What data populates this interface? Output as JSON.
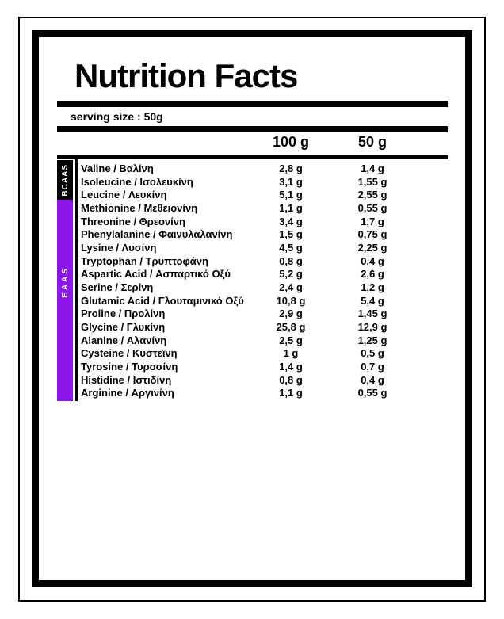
{
  "label": {
    "title": "Nutrition Facts",
    "serving_size": "serving size : 50g",
    "columns": {
      "per100": "100 g",
      "per50": "50 g"
    },
    "sections": [
      {
        "id": "bcaas",
        "label": "BCAAS",
        "color": "#000000"
      },
      {
        "id": "eaas",
        "label": "EAAS",
        "color": "#8C15EA"
      }
    ],
    "rows": [
      {
        "section": "bcaas",
        "name": "Valine / Βαλίνη",
        "per100": "2,8 g",
        "per50": "1,4 g"
      },
      {
        "section": "bcaas",
        "name": "Isoleucine / Ισολευκίνη",
        "per100": "3,1 g",
        "per50": "1,55 g"
      },
      {
        "section": "bcaas",
        "name": "Leucine / Λευκίνη",
        "per100": "5,1 g",
        "per50": "2,55 g"
      },
      {
        "section": "eaas",
        "name": "Methionine / Μεθειονίνη",
        "per100": "1,1 g",
        "per50": "0,55 g"
      },
      {
        "section": "eaas",
        "name": "Threonine / Θρεονίνη",
        "per100": "3,4 g",
        "per50": "1,7 g"
      },
      {
        "section": "eaas",
        "name": "Phenylalanine / Φαινυλαλανίνη",
        "per100": "1,5 g",
        "per50": "0,75 g"
      },
      {
        "section": "eaas",
        "name": "Lysine / Λυσίνη",
        "per100": "4,5 g",
        "per50": "2,25 g"
      },
      {
        "section": "eaas",
        "name": "Tryptophan / Τρυπτοφάνη",
        "per100": "0,8 g",
        "per50": "0,4 g"
      },
      {
        "section": "eaas",
        "name": "Aspartic Acid / Ασπαρτικό Οξύ",
        "per100": "5,2 g",
        "per50": "2,6 g"
      },
      {
        "section": "eaas",
        "name": "Serine / Σερίνη",
        "per100": "2,4 g",
        "per50": "1,2 g"
      },
      {
        "section": "eaas",
        "name": "Glutamic Acid / Γλουταμινικό Οξύ",
        "per100": "10,8 g",
        "per50": "5,4 g"
      },
      {
        "section": "eaas",
        "name": "Proline / Προλίνη",
        "per100": "2,9 g",
        "per50": "1,45 g"
      },
      {
        "section": "eaas",
        "name": "Glycine / Γλυκίνη",
        "per100": "25,8 g",
        "per50": "12,9 g"
      },
      {
        "section": "eaas",
        "name": "Alanine / Αλανίνη",
        "per100": "2,5 g",
        "per50": "1,25 g"
      },
      {
        "section": "eaas",
        "name": "Cysteine / Κυστεϊνη",
        "per100": "1 g",
        "per50": "0,5 g"
      },
      {
        "section": "eaas",
        "name": "Tyrosine / Τυροσίνη",
        "per100": "1,4 g",
        "per50": "0,7 g"
      },
      {
        "section": "eaas",
        "name": "Histidine / Ιστιδίνη",
        "per100": "0,8 g",
        "per50": "0,4 g"
      },
      {
        "section": "eaas",
        "name": "Arginine / Αργινίνη",
        "per100": "1,1 g",
        "per50": "0,55 g"
      }
    ]
  },
  "colors": {
    "ink": "#000000",
    "accent_purple": "#8C15EA",
    "sidebar_text": "#ffffff"
  }
}
